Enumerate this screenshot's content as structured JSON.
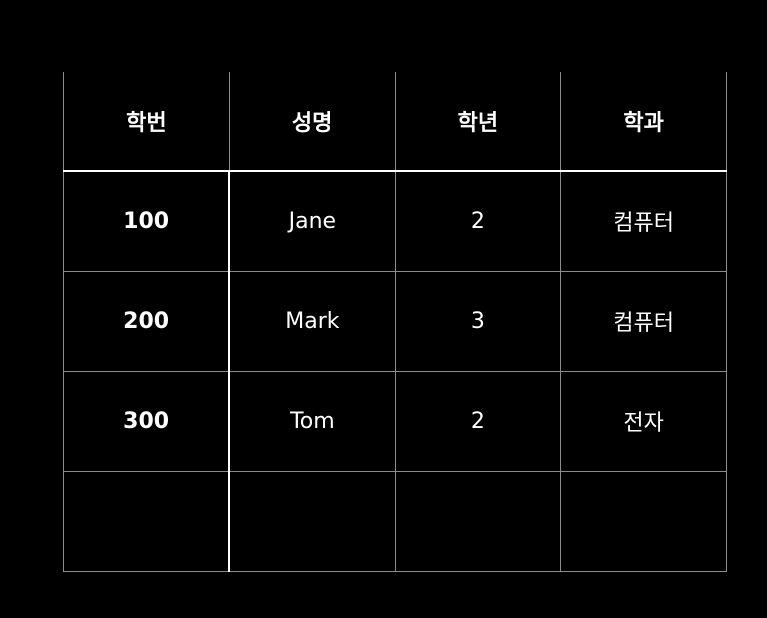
{
  "table": {
    "headers": [
      "학번",
      "성명",
      "학년",
      "학과"
    ],
    "rows": [
      [
        "100",
        "Jane",
        "2",
        "컴퓨터"
      ],
      [
        "200",
        "Mark",
        "3",
        "컴퓨터"
      ],
      [
        "300",
        "Tom",
        "2",
        "전자"
      ],
      [
        "",
        "",
        "",
        ""
      ]
    ]
  }
}
